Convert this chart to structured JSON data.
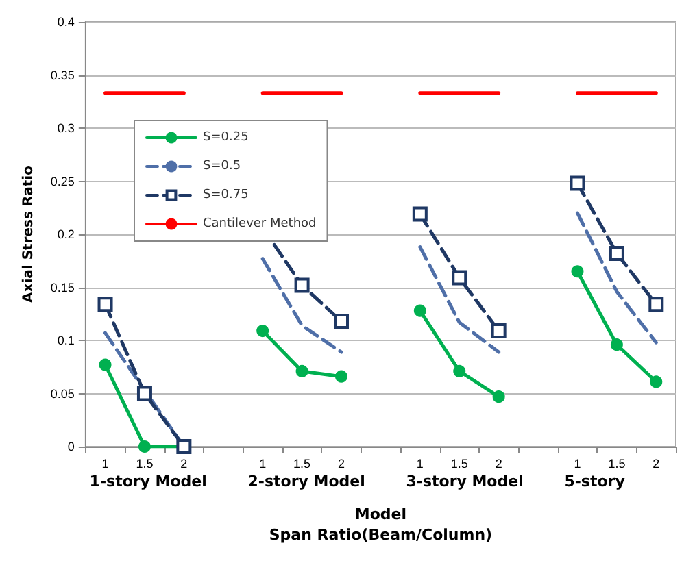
{
  "chart_data": {
    "type": "line",
    "ylabel": "Axial Stress Ratio",
    "xlabel": "Model\nSpan Ratio(Beam/Column)",
    "annotations": [
      "1-story Model",
      "2-story Model",
      "3-story Model",
      "5-story"
    ],
    "categories": [
      "1",
      "1.5",
      "2",
      null,
      "1",
      "1.5",
      "2",
      null,
      "1",
      "1.5",
      "2",
      null,
      "1",
      "1.5",
      "2"
    ],
    "series": [
      {
        "name": "S=0.25",
        "color": "#00b050",
        "marker": "circle",
        "line_style": "solid",
        "values": [
          0.077,
          0,
          0,
          null,
          0.109,
          0.071,
          0.066,
          null,
          0.128,
          0.071,
          0.047,
          null,
          0.165,
          0.096,
          0.061
        ]
      },
      {
        "name": "S=0.5",
        "color": "#4f6fa8",
        "marker": "none",
        "line_style": "dashed",
        "values": [
          0.107,
          0.053,
          0,
          null,
          0.177,
          0.114,
          0.089,
          null,
          0.188,
          0.117,
          0.089,
          null,
          0.22,
          0.146,
          0.098
        ]
      },
      {
        "name": "S=0.75",
        "color": "#1f3864",
        "marker": "square",
        "line_style": "dashed",
        "values": [
          0.134,
          0.05,
          0,
          null,
          0.206,
          0.152,
          0.118,
          null,
          0.219,
          0.159,
          0.109,
          null,
          0.248,
          0.182,
          0.134
        ]
      },
      {
        "name": "Cantilever Method",
        "color": "#ff0000",
        "marker": "none",
        "line_style": "solid",
        "values": [
          0.333,
          0.333,
          0.333,
          null,
          0.333,
          0.333,
          0.333,
          null,
          0.333,
          0.333,
          0.333,
          null,
          0.333,
          0.333,
          0.333
        ]
      }
    ],
    "ylim": [
      0,
      0.4
    ],
    "yticks": [
      0,
      0.05,
      0.1,
      0.15,
      0.2,
      0.25,
      0.3,
      0.35,
      0.4
    ],
    "grid": "y",
    "legend": "top left"
  }
}
